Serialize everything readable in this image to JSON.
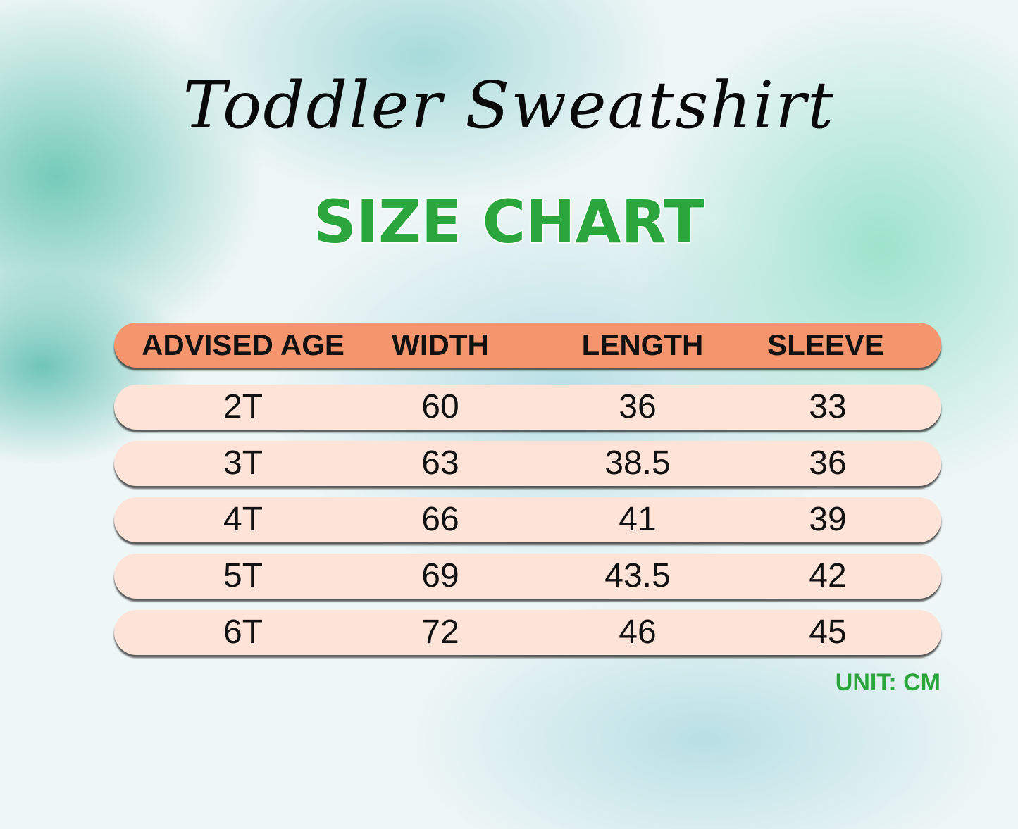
{
  "title": "Toddler Sweatshirt",
  "subtitle": "SIZE CHART",
  "unit_label": "UNIT: CM",
  "colors": {
    "header": "#f4956d",
    "row": "#fde3d8",
    "accent": "#2aa63c"
  },
  "chart_data": {
    "type": "table",
    "columns": [
      "ADVISED AGE",
      "WIDTH",
      "LENGTH",
      "SLEEVE"
    ],
    "rows": [
      [
        "2T",
        "60",
        "36",
        "33"
      ],
      [
        "3T",
        "63",
        "38.5",
        "36"
      ],
      [
        "4T",
        "66",
        "41",
        "39"
      ],
      [
        "5T",
        "69",
        "43.5",
        "42"
      ],
      [
        "6T",
        "72",
        "46",
        "45"
      ]
    ]
  }
}
